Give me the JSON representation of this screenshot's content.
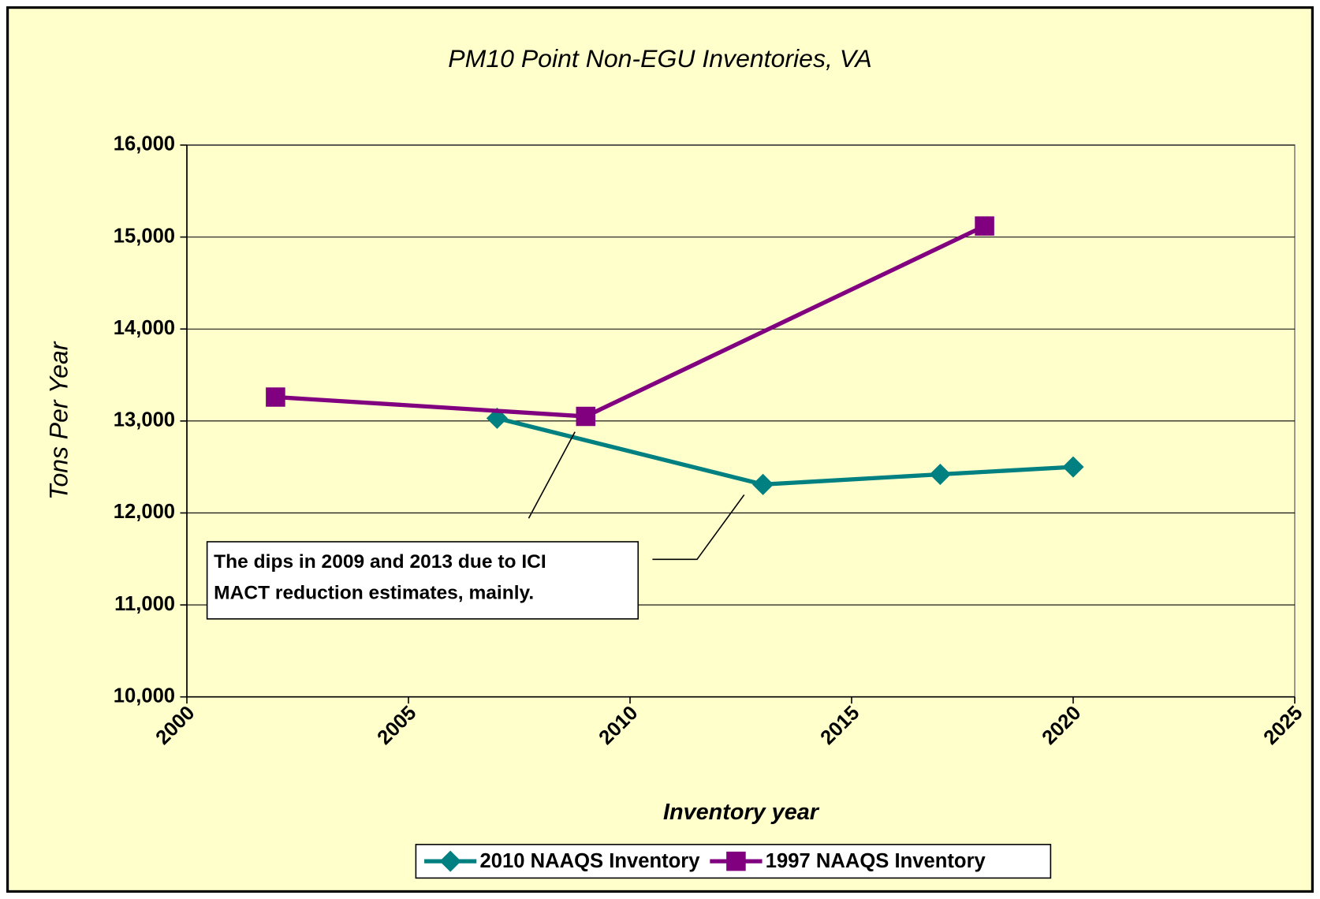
{
  "chart_data": {
    "type": "line",
    "title": "PM10 Point Non-EGU Inventories, VA",
    "x_label": "Inventory year",
    "y_label": "Tons Per Year",
    "annotation": [
      "The dips in 2009 and 2013 due to ICI",
      "MACT reduction estimates, mainly."
    ],
    "series": [
      {
        "name": "2010 NAAQS Inventory",
        "color": "#008080",
        "marker": "diamond",
        "x": [
          2007,
          2013,
          2017,
          2020
        ],
        "values": [
          13030,
          12310,
          12420,
          12500
        ]
      },
      {
        "name": "1997 NAAQS Inventory",
        "color": "#800080",
        "marker": "square",
        "x": [
          2002,
          2009,
          2018
        ],
        "values": [
          13260,
          13050,
          15120
        ]
      }
    ],
    "xlim": [
      2000,
      2025
    ],
    "xticks": [
      2000,
      2005,
      2010,
      2015,
      2020,
      2025
    ],
    "ylim": [
      10000,
      16000
    ],
    "yticks": [
      {
        "value": 10000,
        "label": "10,000"
      },
      {
        "value": 11000,
        "label": "11,000"
      },
      {
        "value": 12000,
        "label": "12,000"
      },
      {
        "value": 13000,
        "label": "13,000"
      },
      {
        "value": 14000,
        "label": "14,000"
      },
      {
        "value": 15000,
        "label": "15,000"
      },
      {
        "value": 16000,
        "label": "16,000"
      }
    ],
    "grid": true,
    "legend": "bottom",
    "background": "#FFFFCC"
  }
}
